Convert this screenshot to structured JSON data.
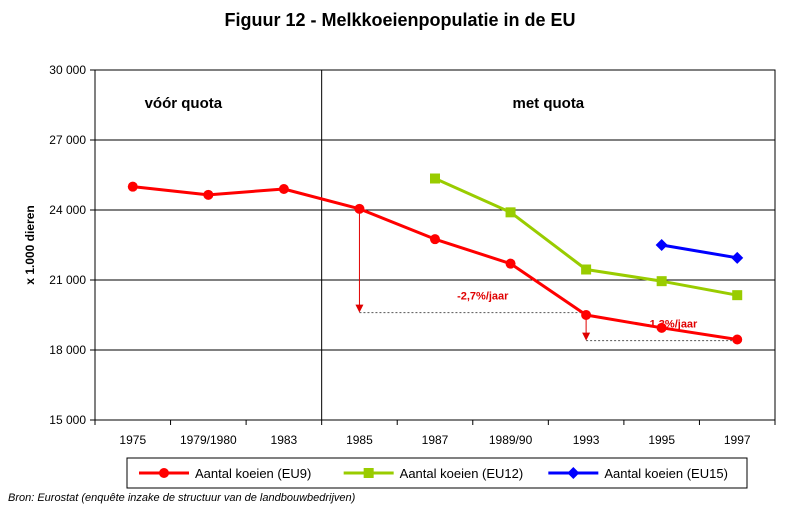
{
  "chart_data": {
    "type": "line",
    "title": "Figuur 12 - Melkkoeienpopulatie in de EU",
    "ylabel": "x 1.000 dieren",
    "xlabel": "",
    "categories": [
      "1975",
      "1979/1980",
      "1983",
      "1985",
      "1987",
      "1989/90",
      "1993",
      "1995",
      "1997"
    ],
    "ylim": [
      15000,
      30000
    ],
    "yticks": [
      15000,
      18000,
      21000,
      24000,
      27000,
      30000
    ],
    "ytick_labels": [
      "15 000",
      "18 000",
      "21 000",
      "24 000",
      "27 000",
      "30 000"
    ],
    "grid": "horizontal",
    "legend_position": "bottom",
    "series": [
      {
        "name": "Aantal koeien (EU9)",
        "color": "#ff0000",
        "marker": "circle",
        "values": [
          25000,
          24650,
          24900,
          24050,
          22750,
          21700,
          19500,
          18950,
          18450
        ]
      },
      {
        "name": "Aantal koeien (EU12)",
        "color": "#99cc00",
        "marker": "square",
        "values": [
          null,
          null,
          null,
          null,
          25350,
          23900,
          21450,
          20950,
          20350
        ]
      },
      {
        "name": "Aantal koeien (EU15)",
        "color": "#0000ff",
        "marker": "diamond",
        "values": [
          null,
          null,
          null,
          null,
          null,
          null,
          null,
          22500,
          21950
        ]
      }
    ],
    "regions": [
      {
        "label": "vóór quota",
        "from_index": 0,
        "to_index": 2
      },
      {
        "label": "met quota",
        "from_index": 3,
        "to_index": 8
      }
    ],
    "annotations": [
      {
        "text": "-2,7%/jaar",
        "from_index": 3,
        "to_index": 6,
        "level": 19600,
        "start_value": 24050
      },
      {
        "text": "-1,3%/jaar",
        "from_index": 6,
        "to_index": 8,
        "level": 18400,
        "start_value": 19500
      }
    ]
  },
  "source": "Bron: Eurostat (enquête inzake de structuur van de landbouwbedrijven)"
}
